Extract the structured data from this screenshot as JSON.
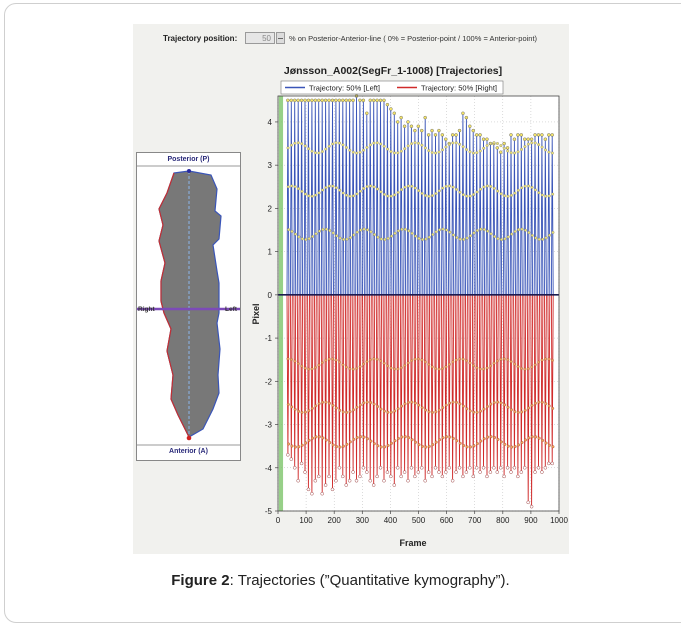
{
  "controls": {
    "trajectory_label": "Trajectory position:",
    "trajectory_value": "50",
    "percent_note": "% on Posterior-Anterior-line  ( 0% = Posterior-point / 100% = Anterior-point)"
  },
  "shape_panel": {
    "top_label": "Posterior (P)",
    "bottom_label": "Anterior (A)",
    "left_label": "Right",
    "right_label": "Left"
  },
  "caption": {
    "prefix": "Figure 2",
    "text": ": Trajectories (”Quantitative kymography”)."
  },
  "colors": {
    "left_series": "#3a55b8",
    "right_series": "#d02a2a",
    "shape_fill": "#7a7a7a",
    "green_band": "#7dc46a"
  },
  "chart_data": {
    "type": "line",
    "title": "Jønsson_A002(SegFr_1-1008) [Trajectories]",
    "xlabel": "Frame",
    "ylabel": "Pixel",
    "xlim": [
      0,
      1000
    ],
    "ylim": [
      -5,
      4.6
    ],
    "x_ticks": [
      0,
      100,
      200,
      300,
      400,
      500,
      600,
      700,
      800,
      900,
      1000
    ],
    "y_ticks": [
      4,
      3,
      2,
      1,
      0,
      -1,
      -2,
      -3,
      -4,
      -5
    ],
    "grid": true,
    "legend_position": "top",
    "series": [
      {
        "name": "Trajectory: 50% [Left]",
        "peaks": [
          4.5,
          4.5,
          4.5,
          4.5,
          4.5,
          4.5,
          4.5,
          4.5,
          4.5,
          4.5,
          4.5,
          4.5,
          4.5,
          4.5,
          4.5,
          4.5,
          4.5,
          4.5,
          4.5,
          4.5,
          4.6,
          4.5,
          4.5,
          4.2,
          4.5,
          4.5,
          4.5,
          4.5,
          4.5,
          4.4,
          4.3,
          4.2,
          4.0,
          4.1,
          3.9,
          4.0,
          3.9,
          3.8,
          3.9,
          3.8,
          4.1,
          3.7,
          3.8,
          3.7,
          3.8,
          3.7,
          3.6,
          3.5,
          3.7,
          3.7,
          3.8,
          4.2,
          4.1,
          3.9,
          3.8,
          3.7,
          3.7,
          3.6,
          3.6,
          3.5,
          3.5,
          3.4,
          3.3,
          3.5,
          3.4,
          3.7,
          3.6,
          3.7,
          3.7,
          3.6,
          3.6,
          3.6,
          3.7,
          3.7,
          3.7,
          3.6,
          3.7,
          3.7
        ],
        "band_levels": [
          3.4,
          2.4,
          1.4
        ]
      },
      {
        "name": "Trajectory: 50% [Right]",
        "troughs": [
          -3.7,
          -3.8,
          -4.0,
          -4.3,
          -3.9,
          -4.1,
          -4.5,
          -4.6,
          -4.3,
          -4.2,
          -4.6,
          -4.4,
          -4.2,
          -4.5,
          -4.3,
          -4.0,
          -4.2,
          -4.4,
          -4.3,
          -4.1,
          -4.3,
          -4.2,
          -4.0,
          -4.1,
          -4.3,
          -4.4,
          -4.2,
          -4.0,
          -4.3,
          -4.1,
          -4.2,
          -4.4,
          -4.0,
          -4.2,
          -4.1,
          -4.3,
          -4.0,
          -4.2,
          -4.1,
          -4.0,
          -4.3,
          -4.1,
          -4.2,
          -4.0,
          -4.1,
          -4.2,
          -4.1,
          -4.0,
          -4.3,
          -4.1,
          -4.0,
          -4.2,
          -4.1,
          -4.0,
          -4.2,
          -4.0,
          -4.1,
          -4.0,
          -4.2,
          -4.1,
          -4.0,
          -4.1,
          -4.0,
          -4.2,
          -4.0,
          -4.1,
          -4.0,
          -4.2,
          -4.1,
          -4.0,
          -4.8,
          -4.9,
          -4.1,
          -4.0,
          -4.1,
          -4.0,
          -3.9,
          -3.9
        ],
        "band_levels": [
          -1.6,
          -2.6,
          -3.4
        ]
      }
    ]
  }
}
